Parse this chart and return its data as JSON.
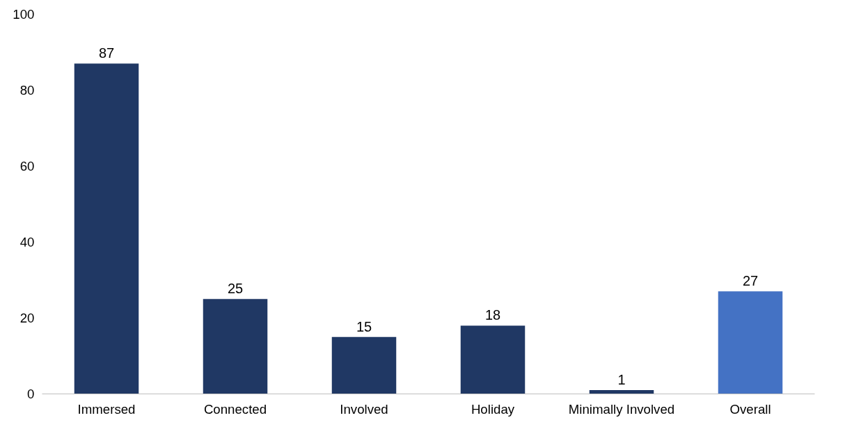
{
  "chart_data": {
    "type": "bar",
    "categories": [
      "Immersed",
      "Connected",
      "Involved",
      "Holiday",
      "Minimally Involved",
      "Overall"
    ],
    "values": [
      87,
      25,
      15,
      18,
      1,
      27
    ],
    "colors": [
      "#203864",
      "#203864",
      "#203864",
      "#203864",
      "#203864",
      "#4472c4"
    ],
    "ylim": [
      0,
      100
    ],
    "yticks": [
      0,
      20,
      40,
      60,
      80,
      100
    ],
    "data_labels": true,
    "grid": false
  }
}
